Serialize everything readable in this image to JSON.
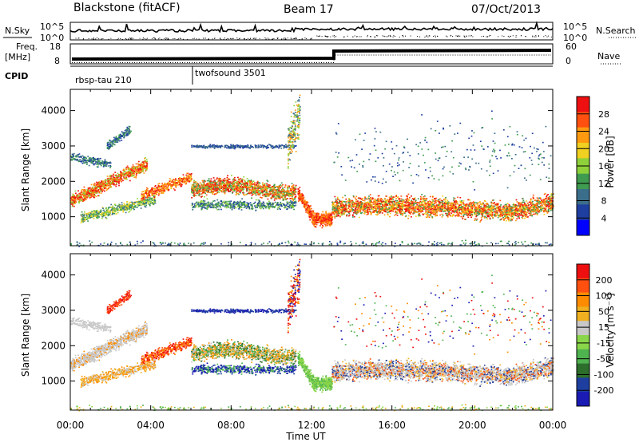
{
  "header": {
    "station": "Blackstone (fitACF)",
    "beam": "Beam 17",
    "date": "07/Oct/2013"
  },
  "side_labels": {
    "nsky": "N.Sky",
    "nsearch": "N.Search",
    "freq_top": "Freq.",
    "freq_unit": "[MHz]",
    "nave": "Nave",
    "cpid": "CPID"
  },
  "cpid_labels": [
    "rbsp-tau 210",
    "twofsound 3501"
  ],
  "noise_ticks": {
    "top": "10^5",
    "bottom": "10^0"
  },
  "freq_ticks": [
    "18",
    "8"
  ],
  "nave_ticks": [
    "60",
    "0"
  ],
  "colors": {
    "power_scale": [
      "#0000ff",
      "#1f3fa0",
      "#3b6e8a",
      "#3f9b4f",
      "#8fd13a",
      "#f0d020",
      "#ff9a10",
      "#ff5010",
      "#ee1010"
    ],
    "velocity_scale": [
      "#1a1ab4",
      "#1f3fa0",
      "#2d6e2d",
      "#4fb34f",
      "#8ad64a",
      "#c8c8c8",
      "#f0b020",
      "#ff8c00",
      "#ff5010",
      "#ee1010"
    ]
  },
  "chart_data": [
    {
      "type": "heatmap",
      "name": "Power",
      "ylabel": "Slant Range [km]",
      "xlabel": "Time UT",
      "x_ticks": [
        "00:00",
        "04:00",
        "08:00",
        "12:00",
        "16:00",
        "20:00",
        "00:00"
      ],
      "y_ticks": [
        1000,
        2000,
        3000,
        4000
      ],
      "ylim": [
        180,
        4600
      ],
      "xlim_hours": [
        0,
        24
      ],
      "colorbar_label": "Power [dB]",
      "colorbar_ticks": [
        "28",
        "24",
        "20",
        "16",
        "12",
        "8",
        "4"
      ]
    },
    {
      "type": "heatmap",
      "name": "Velocity",
      "ylabel": "Slant Range [km]",
      "xlabel": "Time UT",
      "x_ticks": [
        "00:00",
        "04:00",
        "08:00",
        "12:00",
        "16:00",
        "20:00",
        "00:00"
      ],
      "y_ticks": [
        1000,
        2000,
        3000,
        4000
      ],
      "ylim": [
        180,
        4600
      ],
      "xlim_hours": [
        0,
        24
      ],
      "colorbar_label": "Velocity [m s⁻¹]",
      "colorbar_ticks": [
        "200",
        "100",
        "50",
        "15",
        "-15",
        "-50",
        "-100",
        "-200"
      ]
    }
  ]
}
